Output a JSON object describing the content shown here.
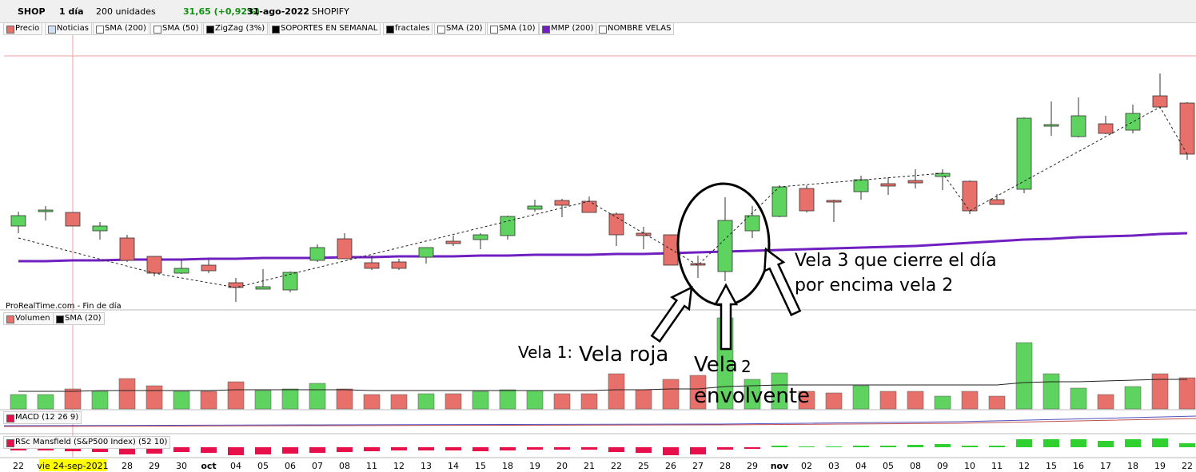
{
  "toolbar": {
    "symbol": "SHOP",
    "period": "1 día",
    "units": "200 unidades",
    "quote": "31,65 (+0,92%)",
    "date": "31-ago-2022",
    "name": "SHOPIFY"
  },
  "legend": [
    "Precio",
    "Noticias",
    "SMA (200)",
    "SMA (50)",
    "ZigZag (3%)",
    "SOPORTES EN SEMANAL",
    "fractales",
    "SMA (20)",
    "SMA (10)",
    "MMP (200)",
    "NOMBRE VELAS"
  ],
  "source": "ProRealTime.com - Fin de día",
  "volume_legend": [
    "Volumen",
    "SMA (20)"
  ],
  "macd_legend": "MACD (12 26 9)",
  "rsc_legend": "RSc Mansfield (S&P500 Index) (52 10)",
  "annotations": {
    "vela1_prefix": "Vela 1:",
    "vela1": "Vela roja",
    "vela2": "Vela",
    "vela2_num": "2",
    "vela2_b": "envolvente",
    "vela3_a": "Vela 3 que cierre el día",
    "vela3_b": "por encima vela 2"
  },
  "chart_data": {
    "type": "candlestick",
    "categories": [
      "22",
      null,
      "vie 24-sep-2021",
      null,
      "28",
      "29",
      "30",
      "oct",
      "04",
      "05",
      "06",
      "07",
      "08",
      "11",
      "12",
      "13",
      "14",
      "15",
      "18",
      "19",
      "20",
      "21",
      "22",
      "25",
      "26",
      "27",
      "28",
      "29",
      "nov",
      "02",
      "03",
      "04",
      "05",
      "08",
      "09",
      "10",
      "11",
      "12",
      "15",
      "16",
      "17",
      "18",
      "19",
      "22"
    ],
    "open": [
      151.7,
      153.5,
      153.4,
      151.1,
      150.2,
      147.9,
      145.8,
      146.8,
      144.6,
      143.8,
      143.7,
      147.4,
      150.1,
      147.1,
      147.2,
      147.8,
      149.8,
      150.0,
      150.5,
      153.8,
      154.9,
      154.8,
      153.2,
      150.8,
      150.6,
      147.0,
      146.0,
      151.1,
      152.9,
      156.4,
      154.9,
      156.0,
      157.0,
      157.4,
      157.9,
      157.3,
      155.0,
      156.3,
      164.2,
      162.9,
      164.5,
      163.7,
      168.0,
      167.1
    ],
    "high": [
      153.5,
      154.2,
      153.4,
      152.2,
      150.6,
      147.9,
      147.5,
      147.5,
      145.2,
      146.3,
      146.0,
      149.4,
      150.8,
      148.0,
      147.6,
      149.0,
      150.5,
      150.8,
      153.0,
      155.0,
      155.1,
      155.4,
      153.4,
      151.6,
      150.6,
      148.0,
      155.3,
      154.2,
      156.8,
      156.8,
      155.0,
      158.0,
      157.8,
      158.8,
      158.8,
      157.4,
      155.7,
      165.3,
      167.3,
      167.8,
      165.5,
      166.9,
      170.8,
      167.2
    ],
    "low": [
      150.8,
      152.4,
      151.7,
      150.0,
      147.2,
      145.4,
      145.7,
      145.8,
      142.2,
      143.8,
      143.4,
      147.2,
      147.6,
      146.2,
      146.2,
      147.0,
      149.2,
      148.8,
      150.0,
      153.5,
      152.8,
      153.4,
      149.2,
      148.8,
      146.8,
      145.2,
      144.8,
      150.2,
      152.8,
      153.4,
      152.2,
      155.0,
      155.6,
      156.4,
      156.2,
      153.2,
      154.4,
      155.8,
      163.0,
      162.8,
      163.2,
      163.3,
      166.4,
      160.0
    ],
    "close": [
      153.0,
      153.7,
      151.7,
      151.7,
      147.4,
      145.8,
      146.4,
      146.1,
      144.0,
      144.1,
      145.9,
      149.0,
      147.6,
      146.4,
      146.4,
      149.0,
      149.5,
      150.6,
      152.9,
      154.2,
      154.3,
      153.4,
      150.6,
      150.5,
      146.8,
      146.8,
      152.4,
      153.0,
      156.6,
      153.6,
      154.8,
      157.5,
      156.7,
      157.1,
      158.3,
      153.6,
      154.4,
      165.2,
      164.4,
      165.5,
      163.3,
      165.8,
      166.6,
      160.7
    ],
    "up_color": "#5fd35f",
    "down_color": "#e8706a",
    "ylim": [
      141.2,
      173.8
    ],
    "mmp": {
      "name": "MMP (200)",
      "color": "#7020c0",
      "values": [
        147.3,
        147.3,
        147.4,
        147.4,
        147.5,
        147.5,
        147.5,
        147.6,
        147.6,
        147.7,
        147.7,
        147.7,
        147.8,
        147.8,
        147.9,
        147.9,
        147.9,
        148.0,
        148.0,
        148.1,
        148.1,
        148.1,
        148.2,
        148.2,
        148.3,
        148.4,
        148.5,
        148.6,
        148.7,
        148.8,
        148.9,
        149.0,
        149.1,
        149.2,
        149.4,
        149.6,
        149.8,
        150.0,
        150.1,
        150.3,
        150.4,
        150.5,
        150.7,
        150.8
      ]
    },
    "zigzag": {
      "name": "ZigZag (3%)",
      "x": [
        0,
        5,
        8,
        21,
        25,
        28,
        34,
        35,
        42,
        43
      ],
      "values": [
        150.2,
        145.8,
        144.0,
        154.8,
        146.8,
        156.6,
        158.3,
        153.6,
        166.6,
        160.7
      ]
    },
    "volume": {
      "values": [
        1.8,
        1.8,
        2.5,
        2.2,
        3.8,
        2.9,
        2.2,
        2.2,
        3.4,
        2.3,
        2.5,
        3.2,
        2.5,
        1.8,
        1.8,
        1.9,
        1.9,
        2.2,
        2.4,
        2.3,
        1.9,
        1.9,
        4.4,
        2.4,
        3.7,
        4.2,
        11.4,
        3.7,
        4.5,
        2.2,
        2.0,
        2.9,
        2.2,
        2.2,
        1.6,
        2.2,
        1.6,
        8.3,
        4.4,
        2.6,
        1.8,
        2.8,
        4.4,
        3.9
      ],
      "ylim": [
        0,
        11.8
      ],
      "sma": [
        2.2,
        2.2,
        2.2,
        2.3,
        2.3,
        2.3,
        2.3,
        2.3,
        2.4,
        2.4,
        2.4,
        2.4,
        2.4,
        2.3,
        2.3,
        2.3,
        2.3,
        2.3,
        2.3,
        2.3,
        2.3,
        2.3,
        2.4,
        2.4,
        2.5,
        2.5,
        2.8,
        2.9,
        3.0,
        3.0,
        3.0,
        3.0,
        3.0,
        3.0,
        3.0,
        3.0,
        3.0,
        3.3,
        3.4,
        3.4,
        3.5,
        3.6,
        3.7,
        3.7
      ]
    },
    "rsc": {
      "values": [
        -0.4,
        -0.4,
        -0.5,
        -0.6,
        -0.9,
        -0.8,
        -0.6,
        -0.7,
        -1.0,
        -0.9,
        -0.8,
        -0.7,
        -0.6,
        -0.5,
        -0.4,
        -0.4,
        -0.4,
        -0.5,
        -0.4,
        -0.3,
        -0.3,
        -0.3,
        -0.6,
        -0.7,
        -1.0,
        -0.9,
        -0.3,
        -0.2,
        0.2,
        0.1,
        0.1,
        0.2,
        0.2,
        0.3,
        0.4,
        0.2,
        0.2,
        1.0,
        1.0,
        1.0,
        0.8,
        1.0,
        1.1,
        0.5
      ],
      "ylim": [
        -1.2,
        1.4
      ],
      "up_color": "#30d030",
      "down_color": "#e8104a"
    }
  }
}
